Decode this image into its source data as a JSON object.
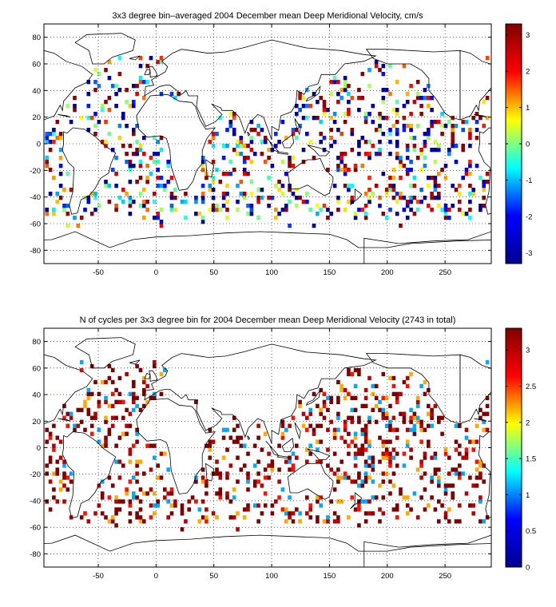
{
  "chart_data": [
    {
      "type": "heatmap",
      "title": "3x3 degree bin–averaged 2004 December mean Deep Meridional Velocity, cm/s",
      "xlabel": "",
      "ylabel": "",
      "xlim": [
        -97,
        290
      ],
      "ylim": [
        -90,
        90
      ],
      "x_ticks": [
        -50,
        0,
        50,
        100,
        150,
        200,
        250
      ],
      "y_ticks": [
        80,
        60,
        40,
        20,
        0,
        -20,
        -40,
        -60,
        -80
      ],
      "colorbar": {
        "min": -3.3,
        "max": 3.3,
        "ticks": [
          3,
          2,
          1,
          0,
          -1,
          -2,
          -3
        ]
      },
      "colormap": [
        "#00008f",
        "#0000ff",
        "#00ffff",
        "#ffff00",
        "#ff0000",
        "#800000"
      ],
      "grid": true,
      "coastlines": true,
      "bin_size_deg": 3,
      "seed": 11
    },
    {
      "type": "heatmap",
      "title": "N of cycles per 3x3 degree bin for 2004 December mean Deep Meridional Velocity (2743 in total)",
      "xlabel": "",
      "ylabel": "",
      "xlim": [
        -97,
        290
      ],
      "ylim": [
        -90,
        90
      ],
      "x_ticks": [
        -50,
        0,
        50,
        100,
        150,
        200,
        250
      ],
      "y_ticks": [
        80,
        60,
        40,
        20,
        0,
        -20,
        -40,
        -60,
        -80
      ],
      "colorbar": {
        "min": 0,
        "max": 3.3,
        "ticks": [
          3,
          2.5,
          2,
          1.5,
          1,
          0.5,
          0
        ]
      },
      "colormap": [
        "#00008f",
        "#0000ff",
        "#00ffff",
        "#ffff00",
        "#ff0000",
        "#800000"
      ],
      "grid": true,
      "coastlines": true,
      "bin_size_deg": 3,
      "total_cycles": 2743,
      "seed": 29
    }
  ]
}
